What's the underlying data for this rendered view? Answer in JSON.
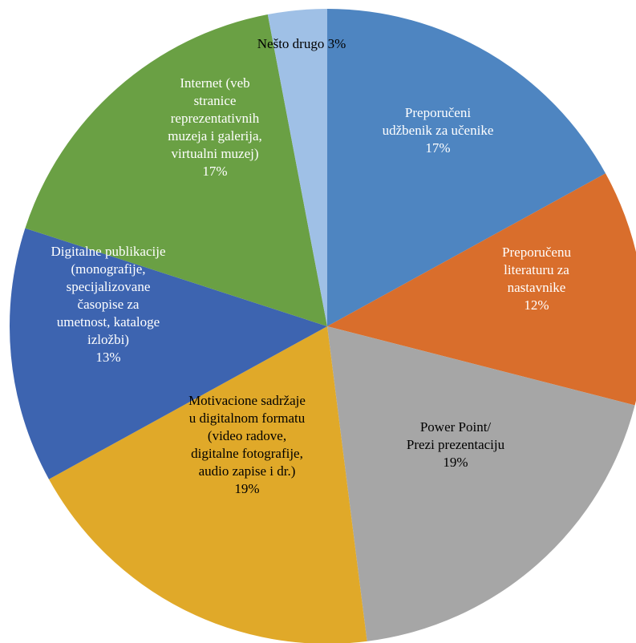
{
  "chart_data": {
    "type": "pie",
    "title": "",
    "start_angle_deg": 0,
    "direction": "clockwise",
    "slices": [
      {
        "label": "Preporučeni udžbenik za učenike",
        "label_lines": [
          "Preporučeni",
          "udžbenik za učenike"
        ],
        "value": 17,
        "value_label": "17%",
        "color": "#4e85c1",
        "text_color": "#ffffff"
      },
      {
        "label": "Preporučenu literaturu za nastavnike",
        "label_lines": [
          "Preporučenu",
          "literaturu za",
          "nastavnike"
        ],
        "value": 12,
        "value_label": "12%",
        "color": "#d96e2c",
        "text_color": "#ffffff"
      },
      {
        "label": "Power Point/ Prezi prezentaciju",
        "label_lines": [
          "Power Point/",
          "Prezi prezentaciju"
        ],
        "value": 19,
        "value_label": "19%",
        "color": "#a6a6a6",
        "text_color": "#000000"
      },
      {
        "label": "Motivacione sadržaje u digitalnom formatu (video radove, digitalne fotografije, audio zapise i dr.)",
        "label_lines": [
          "Motivacione sadržaje",
          "u digitalnom formatu",
          "(video radove,",
          "digitalne fotografije,",
          "audio zapise i dr.)"
        ],
        "value": 19,
        "value_label": "19%",
        "color": "#e0a929",
        "text_color": "#000000"
      },
      {
        "label": "Digitalne publikacije (monografije, specijalizovane časopise za umetnost, kataloge izložbi)",
        "label_lines": [
          "Digitalne publikacije",
          "(monografije,",
          "specijalizovane",
          "časopise za",
          "umetnost, kataloge",
          "izložbi)"
        ],
        "value": 13,
        "value_label": "13%",
        "color": "#3d64b0",
        "text_color": "#ffffff"
      },
      {
        "label": "Internet (veb stranice reprezentativnih muzeja i galerija, virtualni muzej)",
        "label_lines": [
          "Internet (veb",
          "stranice",
          "reprezentativnih",
          "muzeja i galerija,",
          "virtualni muzej)"
        ],
        "value": 17,
        "value_label": "17%",
        "color": "#6aa044",
        "text_color": "#ffffff"
      },
      {
        "label": "Nešto drugo",
        "label_lines": [
          "Nešto drugo"
        ],
        "value": 3,
        "value_label": "3%",
        "color": "#9fc0e6",
        "text_color": "#000000"
      }
    ]
  }
}
